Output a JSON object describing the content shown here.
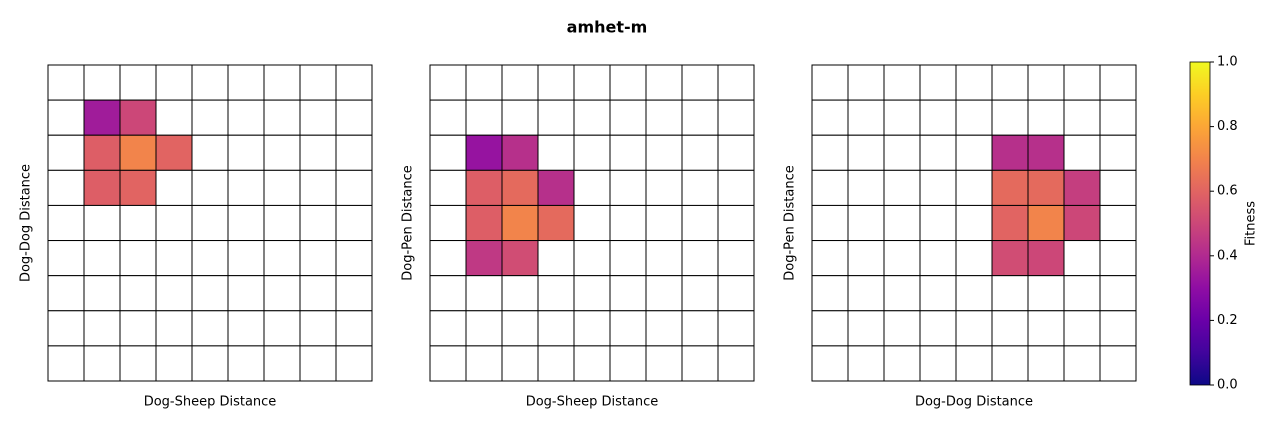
{
  "chart_data": {
    "type": "heatmap",
    "title": "amhet-m",
    "colormap": "plasma",
    "clim": [
      0,
      1
    ],
    "colorbar_label": "Fitness",
    "colorbar_ticks": [
      {
        "value": 0,
        "label": "0.0"
      },
      {
        "value": 0.2,
        "label": "0.2"
      },
      {
        "value": 0.4,
        "label": "0.4"
      },
      {
        "value": 0.6,
        "label": "0.6"
      },
      {
        "value": 0.8,
        "label": "0.8"
      },
      {
        "value": 1,
        "label": "1.0"
      }
    ],
    "panels": [
      {
        "xlabel": "Dog-Sheep Distance",
        "ylabel": "Dog-Dog Distance",
        "values": [
          [
            null,
            null,
            null,
            null,
            null,
            null,
            null,
            null,
            null
          ],
          [
            null,
            0.35,
            0.5,
            null,
            null,
            null,
            null,
            null,
            null
          ],
          [
            null,
            0.58,
            0.7,
            0.6,
            null,
            null,
            null,
            null,
            null
          ],
          [
            null,
            0.58,
            0.6,
            null,
            null,
            null,
            null,
            null,
            null
          ],
          [
            null,
            null,
            null,
            null,
            null,
            null,
            null,
            null,
            null
          ],
          [
            null,
            null,
            null,
            null,
            null,
            null,
            null,
            null,
            null
          ],
          [
            null,
            null,
            null,
            null,
            null,
            null,
            null,
            null,
            null
          ],
          [
            null,
            null,
            null,
            null,
            null,
            null,
            null,
            null,
            null
          ],
          [
            null,
            null,
            null,
            null,
            null,
            null,
            null,
            null,
            null
          ]
        ]
      },
      {
        "xlabel": "Dog-Sheep Distance",
        "ylabel": "Dog-Pen Distance",
        "values": [
          [
            null,
            null,
            null,
            null,
            null,
            null,
            null,
            null,
            null
          ],
          [
            null,
            null,
            null,
            null,
            null,
            null,
            null,
            null,
            null
          ],
          [
            null,
            0.32,
            0.42,
            null,
            null,
            null,
            null,
            null,
            null
          ],
          [
            null,
            0.58,
            0.62,
            0.42,
            null,
            null,
            null,
            null,
            null
          ],
          [
            null,
            0.58,
            0.7,
            0.62,
            null,
            null,
            null,
            null,
            null
          ],
          [
            null,
            0.45,
            0.52,
            null,
            null,
            null,
            null,
            null,
            null
          ],
          [
            null,
            null,
            null,
            null,
            null,
            null,
            null,
            null,
            null
          ],
          [
            null,
            null,
            null,
            null,
            null,
            null,
            null,
            null,
            null
          ],
          [
            null,
            null,
            null,
            null,
            null,
            null,
            null,
            null,
            null
          ]
        ]
      },
      {
        "xlabel": "Dog-Dog Distance",
        "ylabel": "Dog-Pen Distance",
        "values": [
          [
            null,
            null,
            null,
            null,
            null,
            null,
            null,
            null,
            null
          ],
          [
            null,
            null,
            null,
            null,
            null,
            null,
            null,
            null,
            null
          ],
          [
            null,
            null,
            null,
            null,
            null,
            0.42,
            0.42,
            null,
            null
          ],
          [
            null,
            null,
            null,
            null,
            null,
            0.62,
            0.62,
            0.47,
            null
          ],
          [
            null,
            null,
            null,
            null,
            null,
            0.6,
            0.7,
            0.5,
            null
          ],
          [
            null,
            null,
            null,
            null,
            null,
            0.52,
            0.5,
            null,
            null
          ],
          [
            null,
            null,
            null,
            null,
            null,
            null,
            null,
            null,
            null
          ],
          [
            null,
            null,
            null,
            null,
            null,
            null,
            null,
            null,
            null
          ],
          [
            null,
            null,
            null,
            null,
            null,
            null,
            null,
            null,
            null
          ]
        ]
      }
    ]
  }
}
